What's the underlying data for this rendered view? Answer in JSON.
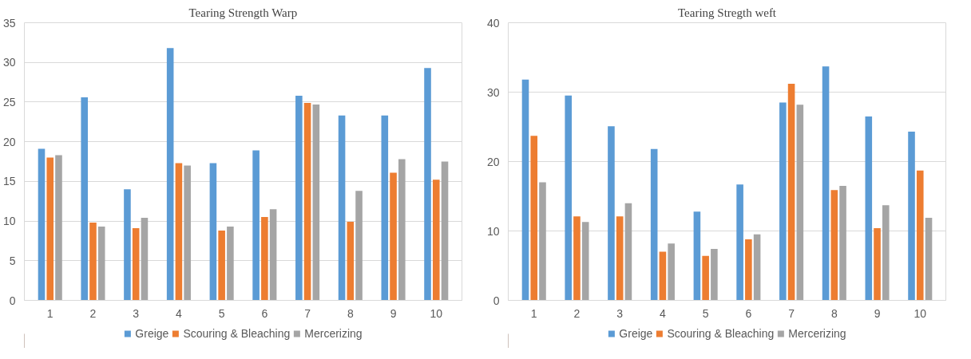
{
  "chart_data": [
    {
      "type": "bar",
      "title": "Tearing Strength Warp",
      "categories": [
        "1",
        "2",
        "3",
        "4",
        "5",
        "6",
        "7",
        "8",
        "9",
        "10"
      ],
      "series": [
        {
          "name": "Greige",
          "color": "#5b9bd5",
          "values": [
            19.1,
            25.6,
            14.0,
            31.8,
            17.3,
            18.9,
            25.8,
            23.3,
            23.3,
            29.3
          ]
        },
        {
          "name": "Scouring & Bleaching",
          "color": "#ed7d31",
          "values": [
            18.0,
            9.8,
            9.1,
            17.3,
            8.8,
            10.5,
            24.9,
            9.9,
            16.1,
            15.2
          ]
        },
        {
          "name": "Mercerizing",
          "color": "#a5a5a5",
          "values": [
            18.3,
            9.3,
            10.4,
            17.0,
            9.3,
            11.5,
            24.7,
            13.8,
            17.8,
            17.5
          ]
        }
      ],
      "ylim": [
        0,
        35
      ],
      "yticks": [
        0,
        5,
        10,
        15,
        20,
        25,
        30,
        35
      ],
      "grid": "y",
      "legend": "bottom"
    },
    {
      "type": "bar",
      "title": "Tearing Stregth weft",
      "categories": [
        "1",
        "2",
        "3",
        "4",
        "5",
        "6",
        "7",
        "8",
        "9",
        "10"
      ],
      "series": [
        {
          "name": "Greige",
          "color": "#5b9bd5",
          "values": [
            31.8,
            29.5,
            25.1,
            21.8,
            12.8,
            16.7,
            28.5,
            33.7,
            26.5,
            24.3
          ]
        },
        {
          "name": "Scouring & Bleaching",
          "color": "#ed7d31",
          "values": [
            23.7,
            12.1,
            12.1,
            7.0,
            6.4,
            8.8,
            31.2,
            15.9,
            10.4,
            18.7
          ]
        },
        {
          "name": "Mercerizing",
          "color": "#a5a5a5",
          "values": [
            17.0,
            11.3,
            14.0,
            8.2,
            7.4,
            9.5,
            28.2,
            16.5,
            13.7,
            11.9
          ]
        }
      ],
      "ylim": [
        0,
        40
      ],
      "yticks": [
        0,
        10,
        20,
        30,
        40
      ],
      "grid": "y",
      "legend": "bottom"
    }
  ]
}
